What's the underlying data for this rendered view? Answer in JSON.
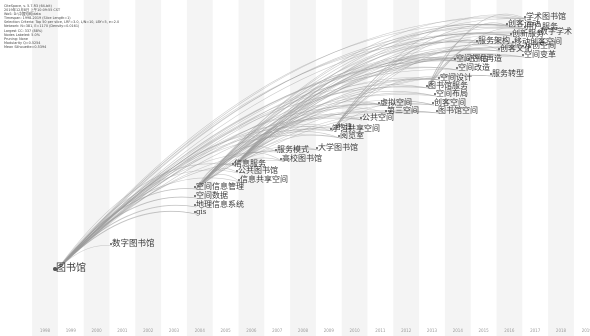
{
  "header_lines": [
    "CiteSpace, v. 5.7.R3 (64-bit)",
    "2019年12月8日 上午10:09:55 CST",
    "WoS: D:\\中国知网\\data",
    "Timespan: 1998-2019 (Slice Length=1)",
    "Selection Criteria: Top 50 per slice, LRF=3.0, L/N=10, LBY=5, e=2.0",
    "Network: N=381, E=1170 (Density=0.0161)",
    "Largest CC: 337 (88%)",
    "Nodes Labeled: 5.0%",
    "Pruning: None",
    "Modularity Q=0.5254",
    "Mean Silhouette=0.5394"
  ],
  "colors": {
    "background": "#ffffff",
    "stripe": "#ebebeb",
    "link": "#9a9a9a",
    "label": "#3a3a3a",
    "node": "#555555",
    "year": "#9a9a9a"
  },
  "timeline": {
    "years": [
      "1998",
      "1999",
      "2000",
      "2001",
      "2002",
      "2003",
      "2004",
      "2005",
      "2006",
      "2007",
      "2008",
      "2009",
      "2010",
      "2011",
      "2012",
      "2013",
      "2014",
      "2015",
      "2016",
      "2017",
      "2018",
      "2019"
    ]
  },
  "keywords": [
    {
      "id": "k1",
      "year": 1998,
      "label": "图书馆",
      "rank": 1
    },
    {
      "id": "k2",
      "year": 1999,
      "label": "数字图书馆",
      "rank": 2
    },
    {
      "id": "k3",
      "year": 2004,
      "label": "空间信息管理",
      "rank": 3
    },
    {
      "id": "k4",
      "year": 2004,
      "label": "空间数据",
      "rank": 3
    },
    {
      "id": "k5",
      "year": 2004,
      "label": "地理信息系统",
      "rank": 3
    },
    {
      "id": "k6",
      "year": 2004,
      "label": "gis",
      "rank": 3
    },
    {
      "id": "k7",
      "year": 2005,
      "label": "信息服务",
      "rank": 3
    },
    {
      "id": "k8",
      "year": 2005,
      "label": "公共图书馆",
      "rank": 3
    },
    {
      "id": "k9",
      "year": 2005,
      "label": "信息共享空间",
      "rank": 3
    },
    {
      "id": "k10",
      "year": 2007,
      "label": "服务模式",
      "rank": 3
    },
    {
      "id": "k11",
      "year": 2007,
      "label": "高校图书馆",
      "rank": 3
    },
    {
      "id": "k12",
      "year": 2008,
      "label": "大学图书馆",
      "rank": 3
    },
    {
      "id": "k13",
      "year": 2009,
      "label": "学习共享空间",
      "rank": 3
    },
    {
      "id": "k14",
      "year": 2009,
      "label": "公共空间",
      "rank": 3
    },
    {
      "id": "k15",
      "year": 2009,
      "label": "构建",
      "rank": 3
    },
    {
      "id": "k16",
      "year": 2009,
      "label": "阅览室",
      "rank": 3
    },
    {
      "id": "k17",
      "year": 2011,
      "label": "虚拟空间",
      "rank": 3
    },
    {
      "id": "k18",
      "year": 2011,
      "label": "第三空间",
      "rank": 3
    },
    {
      "id": "k19",
      "year": 2012,
      "label": "空间设计",
      "rank": 3
    },
    {
      "id": "k20",
      "year": 2012,
      "label": "图书馆服务",
      "rank": 3
    },
    {
      "id": "k21",
      "year": 2012,
      "label": "空间布局",
      "rank": 3
    },
    {
      "id": "k22",
      "year": 2012,
      "label": "创客空间",
      "rank": 3
    },
    {
      "id": "k23",
      "year": 2012,
      "label": "图书馆空间",
      "rank": 3
    },
    {
      "id": "k24",
      "year": 2013,
      "label": "空间评估",
      "rank": 3
    },
    {
      "id": "k25",
      "year": 2013,
      "label": "空间改造",
      "rank": 3
    },
    {
      "id": "k26",
      "year": 2014,
      "label": "空间再造",
      "rank": 3
    },
    {
      "id": "k27",
      "year": 2015,
      "label": "服务转型",
      "rank": 3
    },
    {
      "id": "k28",
      "year": 2016,
      "label": "服务架构",
      "rank": 3
    },
    {
      "id": "k29",
      "year": 2016,
      "label": "创客运动",
      "rank": 3
    },
    {
      "id": "k30",
      "year": 2016,
      "label": "创新服务",
      "rank": 3
    },
    {
      "id": "k31",
      "year": 2016,
      "label": "移动创客空间",
      "rank": 3
    },
    {
      "id": "k32",
      "year": 2016,
      "label": "众创空间",
      "rank": 3
    },
    {
      "id": "k33",
      "year": 2016,
      "label": "创客文化",
      "rank": 3
    },
    {
      "id": "k34",
      "year": 2017,
      "label": "空间变革",
      "rank": 3
    },
    {
      "id": "k35",
      "year": 2018,
      "label": "学术图书馆",
      "rank": 3
    },
    {
      "id": "k36",
      "year": 2018,
      "label": "用户服务",
      "rank": 3
    },
    {
      "id": "k37",
      "year": 2018,
      "label": "数字学术",
      "rank": 3
    }
  ]
}
